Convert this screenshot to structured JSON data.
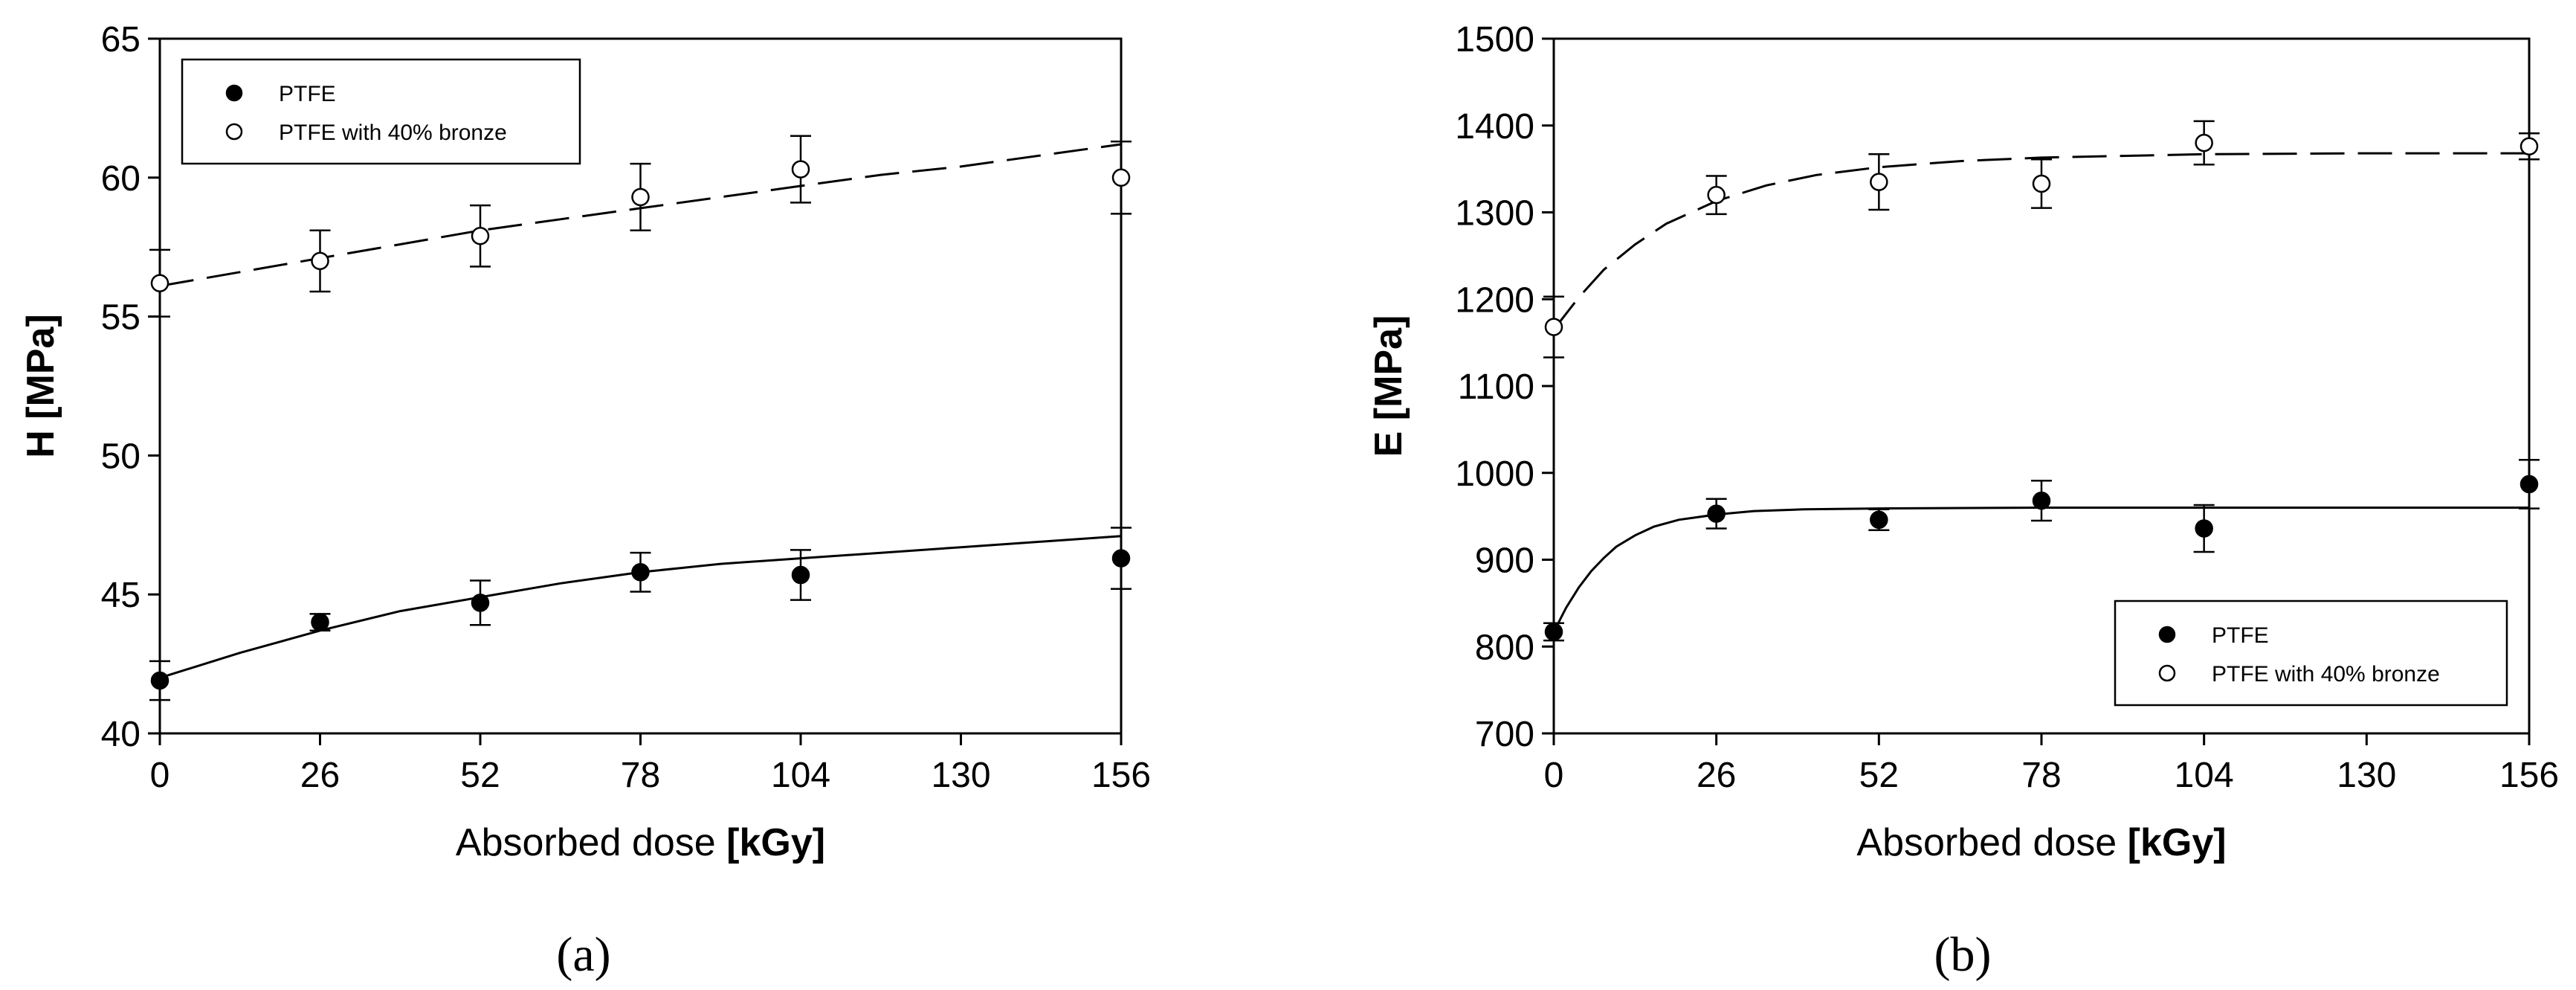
{
  "chart_data": [
    {
      "type": "scatter",
      "panel_label": "(a)",
      "xlabel": "Absorbed dose",
      "xlabel_unit": "[kGy]",
      "ylabel": "H [MPa]",
      "xlim": [
        0,
        156
      ],
      "ylim": [
        40,
        65
      ],
      "xticks": [
        "0",
        "26",
        "52",
        "78",
        "104",
        "130",
        "156"
      ],
      "yticks": [
        "40",
        "45",
        "50",
        "55",
        "60",
        "65"
      ],
      "legend_position": "top-left",
      "series": [
        {
          "name": "PTFE",
          "marker": "filled-circle",
          "line_style": "solid",
          "x": [
            0,
            26,
            52,
            78,
            104,
            156
          ],
          "y": [
            41.9,
            44.0,
            44.7,
            45.8,
            45.7,
            46.3
          ],
          "err": [
            0.7,
            0.3,
            0.8,
            0.7,
            0.9,
            1.1
          ],
          "fit": [
            [
              0,
              42.0
            ],
            [
              13,
              42.9
            ],
            [
              26,
              43.7
            ],
            [
              39,
              44.4
            ],
            [
              52,
              44.9
            ],
            [
              65,
              45.4
            ],
            [
              78,
              45.8
            ],
            [
              91,
              46.1
            ],
            [
              104,
              46.3
            ],
            [
              117,
              46.5
            ],
            [
              130,
              46.7
            ],
            [
              143,
              46.9
            ],
            [
              156,
              47.1
            ]
          ]
        },
        {
          "name": "PTFE with 40% bronze",
          "marker": "open-circle",
          "line_style": "dashed",
          "x": [
            0,
            26,
            52,
            78,
            104,
            156
          ],
          "y": [
            56.2,
            57.0,
            57.9,
            59.3,
            60.3,
            60.0
          ],
          "err": [
            1.2,
            1.1,
            1.1,
            1.2,
            1.2,
            1.3
          ],
          "fit": [
            [
              0,
              56.1
            ],
            [
              13,
              56.6
            ],
            [
              26,
              57.1
            ],
            [
              39,
              57.6
            ],
            [
              52,
              58.1
            ],
            [
              65,
              58.5
            ],
            [
              78,
              58.9
            ],
            [
              91,
              59.3
            ],
            [
              104,
              59.7
            ],
            [
              117,
              60.1
            ],
            [
              130,
              60.4
            ],
            [
              143,
              60.8
            ],
            [
              156,
              61.2
            ]
          ]
        }
      ]
    },
    {
      "type": "scatter",
      "panel_label": "(b)",
      "xlabel": "Absorbed dose",
      "xlabel_unit": "[kGy]",
      "ylabel": "E [MPa]",
      "xlim": [
        0,
        156
      ],
      "ylim": [
        700,
        1500
      ],
      "xticks": [
        "0",
        "26",
        "52",
        "78",
        "104",
        "130",
        "156"
      ],
      "yticks": [
        "700",
        "800",
        "900",
        "1000",
        "1100",
        "1200",
        "1300",
        "1400",
        "1500"
      ],
      "legend_position": "bottom-right",
      "series": [
        {
          "name": "PTFE",
          "marker": "filled-circle",
          "line_style": "solid",
          "x": [
            0,
            26,
            52,
            78,
            104,
            156
          ],
          "y": [
            817,
            953,
            946,
            968,
            936,
            987
          ],
          "err": [
            10,
            17,
            12,
            23,
            27,
            28
          ],
          "fit": [
            [
              0,
              817
            ],
            [
              2,
              845
            ],
            [
              4,
              868
            ],
            [
              6,
              887
            ],
            [
              8,
              902
            ],
            [
              10,
              915
            ],
            [
              13,
              928
            ],
            [
              16,
              938
            ],
            [
              20,
              946
            ],
            [
              26,
              952
            ],
            [
              32,
              956
            ],
            [
              40,
              958
            ],
            [
              52,
              959
            ],
            [
              78,
              960
            ],
            [
              104,
              960
            ],
            [
              156,
              960
            ]
          ]
        },
        {
          "name": "PTFE with 40% bronze",
          "marker": "open-circle",
          "line_style": "dashed",
          "x": [
            0,
            26,
            52,
            78,
            104,
            156
          ],
          "y": [
            1168,
            1320,
            1335,
            1333,
            1380,
            1376
          ],
          "err": [
            35,
            22,
            32,
            28,
            25,
            15
          ],
          "fit": [
            [
              0,
              1165
            ],
            [
              4,
              1202
            ],
            [
              8,
              1234
            ],
            [
              13,
              1263
            ],
            [
              18,
              1287
            ],
            [
              26,
              1313
            ],
            [
              34,
              1331
            ],
            [
              42,
              1343
            ],
            [
              52,
              1352
            ],
            [
              65,
              1359
            ],
            [
              78,
              1363
            ],
            [
              91,
              1365
            ],
            [
              104,
              1367
            ],
            [
              130,
              1368
            ],
            [
              156,
              1368
            ]
          ]
        }
      ]
    }
  ]
}
